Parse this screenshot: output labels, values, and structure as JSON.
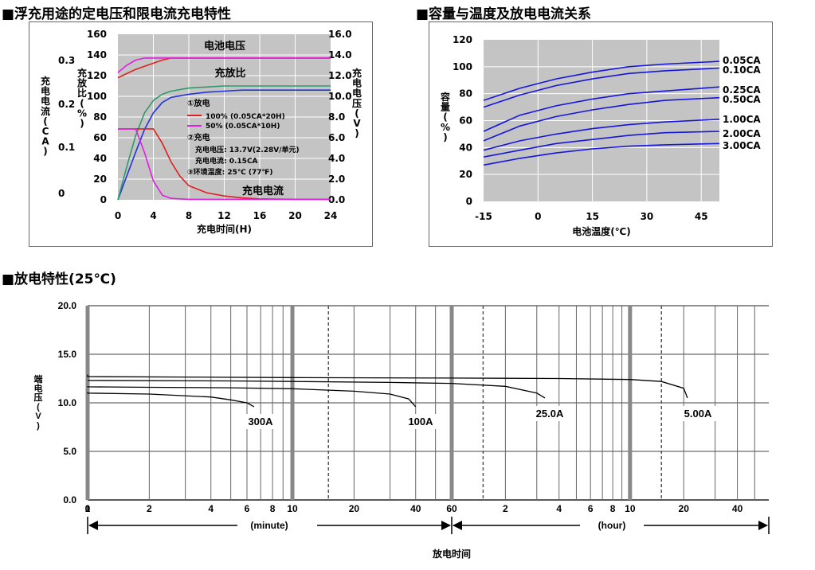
{
  "titles": {
    "charging": "■浮充用途的定电压和限电流充电特性",
    "capacity": "■容量与温度及放电电流关系",
    "discharge": "■放电特性(25℃)"
  },
  "chart_data": [
    {
      "type": "line",
      "xlabel": "充电时间(H)",
      "x_ticks": [
        "0",
        "4",
        "8",
        "12",
        "16",
        "20",
        "24"
      ],
      "xlim": [
        0,
        24
      ],
      "axes": {
        "current_ca": {
          "label": "充电电流(CA)",
          "ticks": [
            "0.3",
            "0.2",
            "0.1",
            "0"
          ],
          "ylim": [
            0,
            0.35
          ]
        },
        "ratio_pct": {
          "label": "充放比(%)",
          "ticks": [
            "160",
            "140",
            "120",
            "100",
            "80",
            "60",
            "40",
            "20",
            "0"
          ],
          "ylim": [
            0,
            160
          ]
        },
        "voltage_v": {
          "label": "充电电压(V)",
          "ticks": [
            "16.0",
            "14.0",
            "12.0",
            "10.0",
            "8.0",
            "6.0",
            "4.0",
            "2.0",
            "0.0"
          ],
          "ylim": [
            0,
            16
          ]
        }
      },
      "annotations": {
        "battery_voltage": "电池电压",
        "charge_ratio": "充放比",
        "charge_current": "充电电流",
        "discharge_head": "①放电",
        "legend_100": "100% (0.05CA*20H)",
        "legend_50": "50% (0.05CA*10H)",
        "charge_head": "②充电",
        "charge_voltage": "充电电压:  13.7V(2.28V/单元)",
        "charge_current_value": "充电电流:  0.15CA",
        "ambient": "③环境温度:  25℃ (77℉)"
      },
      "series": [
        {
          "name": "电池电压",
          "color": "#2233dd",
          "axis": "voltage_v",
          "x": [
            0,
            1,
            2,
            3,
            4,
            5,
            6,
            8,
            10,
            12,
            14,
            24
          ],
          "y": [
            0,
            2.3,
            4.6,
            6.8,
            8.4,
            9.4,
            9.9,
            10.2,
            10.4,
            10.5,
            10.6,
            10.6
          ]
        },
        {
          "name": "充放比",
          "color": "#2f9a6a",
          "axis": "ratio_pct",
          "x": [
            0,
            1,
            2,
            3,
            4,
            5,
            6,
            8,
            10,
            12,
            14,
            16,
            24
          ],
          "y": [
            0,
            32,
            62,
            84,
            96,
            102,
            105,
            108,
            109,
            110,
            110,
            110,
            110
          ]
        },
        {
          "name": "100% (0.05CA*20H)",
          "color": "#e02020",
          "axis": "ratio_pct",
          "x": [
            0,
            1,
            2,
            3,
            4,
            5,
            6,
            8,
            10,
            12,
            14,
            24
          ],
          "y": [
            118,
            122,
            126,
            129,
            132,
            135,
            137,
            137,
            137,
            137,
            137,
            137
          ]
        },
        {
          "name": "50% (0.05CA*10H)",
          "color": "#e020e0",
          "axis": "ratio_pct",
          "x": [
            0,
            1,
            2,
            3,
            4,
            5,
            6,
            8,
            10,
            12,
            14,
            24
          ],
          "y": [
            123,
            130,
            135,
            137,
            137,
            137,
            137,
            137,
            137,
            137,
            137,
            137
          ]
        },
        {
          "name": "100% 充电电流",
          "color": "#e02020",
          "axis": "current_ca",
          "x": [
            0,
            1,
            2,
            3,
            4,
            5,
            6,
            7,
            8,
            10,
            12,
            14,
            16,
            20,
            24
          ],
          "y": [
            0.15,
            0.15,
            0.15,
            0.15,
            0.15,
            0.12,
            0.08,
            0.05,
            0.03,
            0.015,
            0.008,
            0.004,
            0.002,
            0.001,
            0.001
          ]
        },
        {
          "name": "50% 充电电流",
          "color": "#e020e0",
          "axis": "current_ca",
          "x": [
            0,
            1,
            2,
            3,
            4,
            5,
            6,
            8,
            12,
            24
          ],
          "y": [
            0.15,
            0.15,
            0.15,
            0.1,
            0.04,
            0.01,
            0.003,
            0.001,
            0.001,
            0.001
          ]
        }
      ]
    },
    {
      "type": "line",
      "xlabel": "电池温度(℃)",
      "ylabel": "容量(%)",
      "x_ticks": [
        "-15",
        "0",
        "15",
        "30",
        "45"
      ],
      "y_ticks": [
        "0",
        "20",
        "40",
        "60",
        "80",
        "100",
        "120"
      ],
      "xlim": [
        -15,
        50
      ],
      "ylim": [
        0,
        120
      ],
      "series": [
        {
          "name": "0.05CA",
          "x": [
            -15,
            -5,
            5,
            15,
            25,
            35,
            50
          ],
          "y": [
            75,
            84,
            91,
            96,
            100,
            102,
            104
          ]
        },
        {
          "name": "0.10CA",
          "x": [
            -15,
            -5,
            5,
            15,
            25,
            35,
            50
          ],
          "y": [
            70,
            79,
            86,
            91,
            95,
            97,
            99
          ]
        },
        {
          "name": "0.25CA",
          "x": [
            -15,
            -5,
            5,
            15,
            25,
            35,
            50
          ],
          "y": [
            52,
            64,
            71,
            76,
            80,
            82,
            85
          ]
        },
        {
          "name": "0.50CA",
          "x": [
            -15,
            -5,
            5,
            15,
            25,
            35,
            50
          ],
          "y": [
            45,
            56,
            63,
            68,
            72,
            75,
            77
          ]
        },
        {
          "name": "1.00CA",
          "x": [
            -15,
            -5,
            5,
            15,
            25,
            35,
            50
          ],
          "y": [
            38,
            45,
            50,
            54,
            57,
            59,
            61
          ]
        },
        {
          "name": "2.00CA",
          "x": [
            -15,
            -5,
            5,
            15,
            25,
            35,
            50
          ],
          "y": [
            33,
            38,
            43,
            46,
            49,
            51,
            52
          ]
        },
        {
          "name": "3.00CA",
          "x": [
            -15,
            -5,
            5,
            15,
            25,
            35,
            50
          ],
          "y": [
            27,
            32,
            36,
            39,
            41,
            42,
            43
          ]
        }
      ]
    },
    {
      "type": "line",
      "xlabel": "放电时间",
      "ylabel": "端电压(V)",
      "y_ticks": [
        "0.0",
        "5.0",
        "10.0",
        "15.0",
        "20.0"
      ],
      "ylim": [
        0,
        20
      ],
      "minute_ticks": [
        "0",
        "1",
        "2",
        "4",
        "6",
        "8",
        "10",
        "20",
        "40",
        "60"
      ],
      "hour_ticks": [
        "2",
        "4",
        "6",
        "8",
        "10",
        "20",
        "40"
      ],
      "unit_minute": "(minute)",
      "unit_hour": "(hour)",
      "series": [
        {
          "name": "300A",
          "x_min": [
            0,
            1,
            2,
            4,
            5,
            6,
            6.5
          ],
          "y": [
            11.1,
            11.0,
            10.9,
            10.6,
            10.3,
            10.0,
            9.6
          ]
        },
        {
          "name": "100A",
          "x_min": [
            0,
            1,
            2,
            5,
            10,
            20,
            30,
            37,
            40
          ],
          "y": [
            11.7,
            11.65,
            11.6,
            11.55,
            11.45,
            11.2,
            10.9,
            10.4,
            9.6
          ]
        },
        {
          "name": "25.0A",
          "x_min": [
            0,
            1,
            5,
            10,
            30,
            60,
            120,
            180,
            200
          ],
          "y": [
            12.3,
            12.3,
            12.25,
            12.2,
            12.1,
            12.0,
            11.7,
            11.0,
            10.5
          ]
        },
        {
          "name": "5.00A",
          "x_min": [
            0,
            1,
            10,
            60,
            240,
            600,
            900,
            1200,
            1260
          ],
          "y": [
            12.9,
            12.7,
            12.6,
            12.55,
            12.5,
            12.4,
            12.2,
            11.5,
            10.5
          ]
        }
      ]
    }
  ]
}
